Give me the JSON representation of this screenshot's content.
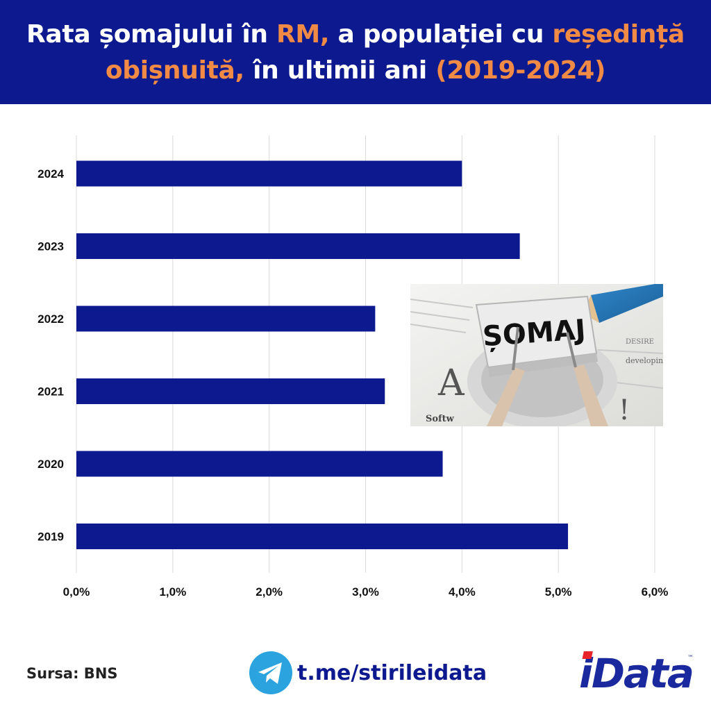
{
  "header": {
    "line1": [
      {
        "text": "Rata șomajului în ",
        "accent": false
      },
      {
        "text": "RM,",
        "accent": true
      },
      {
        "text": " a populației cu ",
        "accent": false
      },
      {
        "text": "reședință",
        "accent": true
      }
    ],
    "line2": [
      {
        "text": "obișnuită,",
        "accent": true
      },
      {
        "text": " în ultimii ani ",
        "accent": false
      },
      {
        "text": "(2019-2024)",
        "accent": true
      }
    ]
  },
  "colors": {
    "header_bg": "#0d1a8f",
    "accent": "#f08a45",
    "bar": "#0d1a8f",
    "grid": "#d9d9d9"
  },
  "chart_data": {
    "type": "bar",
    "orientation": "horizontal",
    "categories": [
      "2024",
      "2023",
      "2022",
      "2021",
      "2020",
      "2019"
    ],
    "values": [
      4.0,
      4.6,
      3.1,
      3.2,
      3.8,
      5.1
    ],
    "xlim": [
      0,
      6
    ],
    "x_ticks": [
      "0,0%",
      "1,0%",
      "2,0%",
      "3,0%",
      "4,0%",
      "5,0%",
      "6,0%"
    ],
    "grid": true,
    "legend": "none"
  },
  "photo": {
    "sign_text": "ȘOMAJ",
    "paper_words": [
      "DESIRE",
      "developing",
      "Softw"
    ]
  },
  "footer": {
    "source": "Sursa: BNS",
    "telegram_link": "t.me/stirileidata",
    "telegram_icon": "telegram-icon",
    "logo_text": "iData",
    "logo_tm": "™"
  }
}
